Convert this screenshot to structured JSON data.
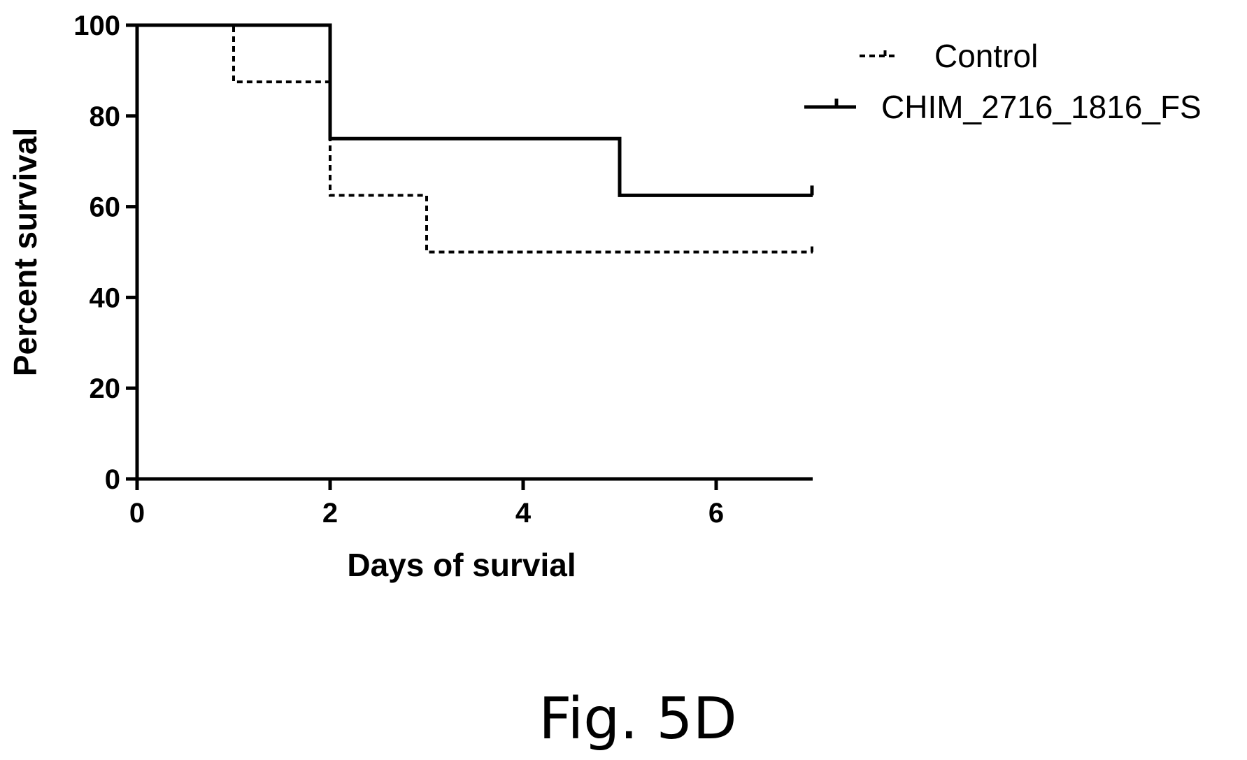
{
  "chart_data": {
    "type": "line",
    "subtype": "kaplan-meier-survival",
    "xlabel": "Days of survial",
    "ylabel": "Percent survival",
    "xlim": [
      0,
      7
    ],
    "ylim": [
      0,
      100
    ],
    "xticks": [
      0,
      2,
      4,
      6
    ],
    "yticks": [
      0,
      20,
      40,
      60,
      80,
      100
    ],
    "grid": false,
    "legend_position": "top-right",
    "series": [
      {
        "name": "Control",
        "line_style": "dotted",
        "color": "#000000",
        "steps": [
          [
            0,
            100
          ],
          [
            1,
            87.5
          ],
          [
            2,
            62.5
          ],
          [
            3,
            50
          ],
          [
            7,
            50
          ]
        ],
        "censored": [
          [
            7,
            50
          ]
        ]
      },
      {
        "name": "CHIM_2716_1816_FS",
        "line_style": "solid",
        "color": "#000000",
        "steps": [
          [
            0,
            100
          ],
          [
            2,
            75
          ],
          [
            5,
            62.5
          ],
          [
            7,
            62.5
          ]
        ],
        "censored": [
          [
            7,
            62.5
          ]
        ]
      }
    ]
  },
  "caption": "Fig. 5D"
}
